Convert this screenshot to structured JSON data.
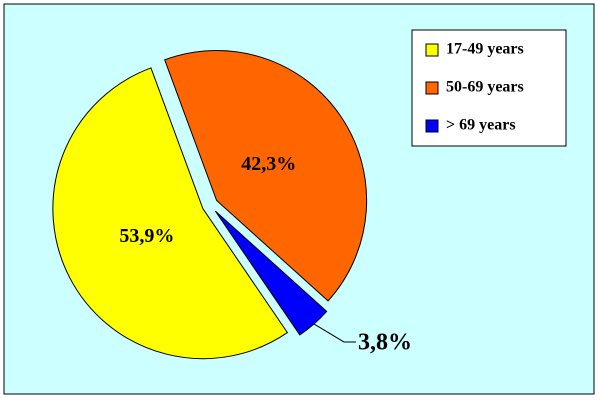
{
  "chart_data": {
    "type": "pie",
    "categories": [
      "17-49 years",
      "50-69 years",
      "> 69 years"
    ],
    "values": [
      53.9,
      42.3,
      3.8
    ],
    "value_labels": [
      "53,9%",
      "42,3%",
      "3,8%"
    ],
    "colors": [
      "#ffff00",
      "#ff6600",
      "#0000ff"
    ],
    "legend": "top-right"
  }
}
